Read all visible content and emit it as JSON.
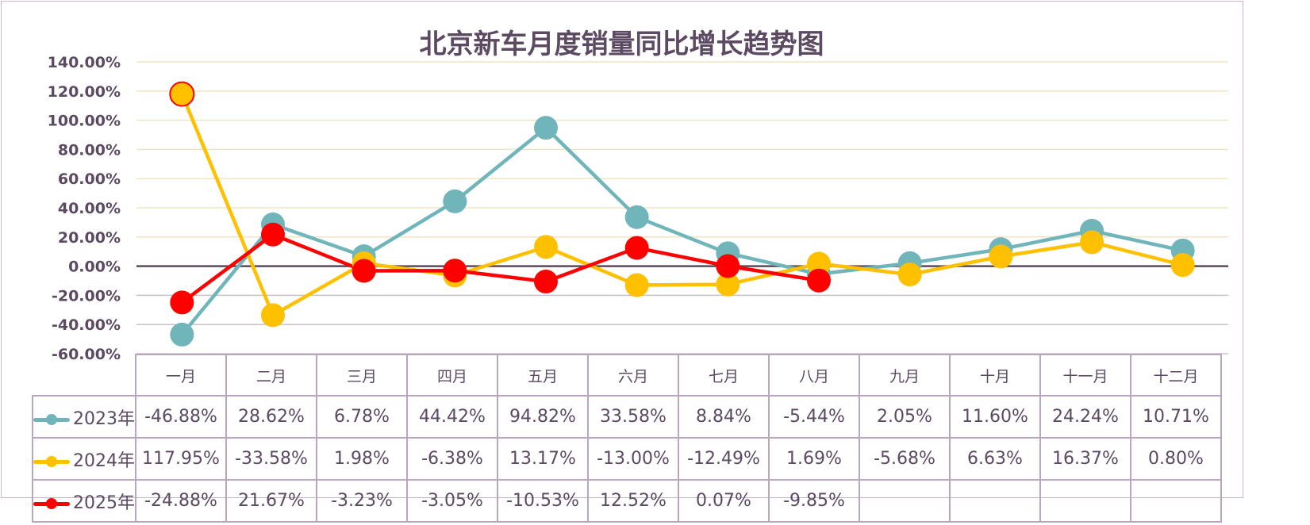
{
  "chart_data": {
    "type": "line",
    "title": "北京新车月度销量同比增长趋势图",
    "categories": [
      "一月",
      "二月",
      "三月",
      "四月",
      "五月",
      "六月",
      "七月",
      "八月",
      "九月",
      "十月",
      "十一月",
      "十二月"
    ],
    "ylim": [
      -60,
      140
    ],
    "yticks": [
      140,
      120,
      100,
      80,
      60,
      40,
      20,
      0,
      -20,
      -40,
      -60
    ],
    "ytick_labels": [
      "140.00%",
      "120.00%",
      "100.00%",
      "80.00%",
      "60.00%",
      "40.00%",
      "20.00%",
      "0.00%",
      "-20.00%",
      "-40.00%",
      "-60.00%"
    ],
    "grid": true,
    "legend": "data-table-left",
    "series": [
      {
        "name": "2023年",
        "color": "#70b5ba",
        "values": [
          -46.88,
          28.62,
          6.78,
          44.42,
          94.82,
          33.58,
          8.84,
          -5.44,
          2.05,
          11.6,
          24.24,
          10.71
        ],
        "labels": [
          "-46.88%",
          "28.62%",
          "6.78%",
          "44.42%",
          "94.82%",
          "33.58%",
          "8.84%",
          "-5.44%",
          "2.05%",
          "11.60%",
          "24.24%",
          "10.71%"
        ]
      },
      {
        "name": "2024年",
        "color": "#ffc000",
        "values": [
          117.95,
          -33.58,
          1.98,
          -6.38,
          13.17,
          -13.0,
          -12.49,
          1.69,
          -5.68,
          6.63,
          16.37,
          0.8
        ],
        "labels": [
          "117.95%",
          "-33.58%",
          "1.98%",
          "-6.38%",
          "13.17%",
          "-13.00%",
          "-12.49%",
          "1.69%",
          "-5.68%",
          "6.63%",
          "16.37%",
          "0.80%"
        ]
      },
      {
        "name": "2025年",
        "color": "#ff0000",
        "values": [
          -24.88,
          21.67,
          -3.23,
          -3.05,
          -10.53,
          12.52,
          0.07,
          -9.85,
          null,
          null,
          null,
          null
        ],
        "labels": [
          "-24.88%",
          "21.67%",
          "-3.23%",
          "-3.05%",
          "-10.53%",
          "12.52%",
          "0.07%",
          "-9.85%",
          "",
          "",
          "",
          ""
        ]
      }
    ]
  }
}
